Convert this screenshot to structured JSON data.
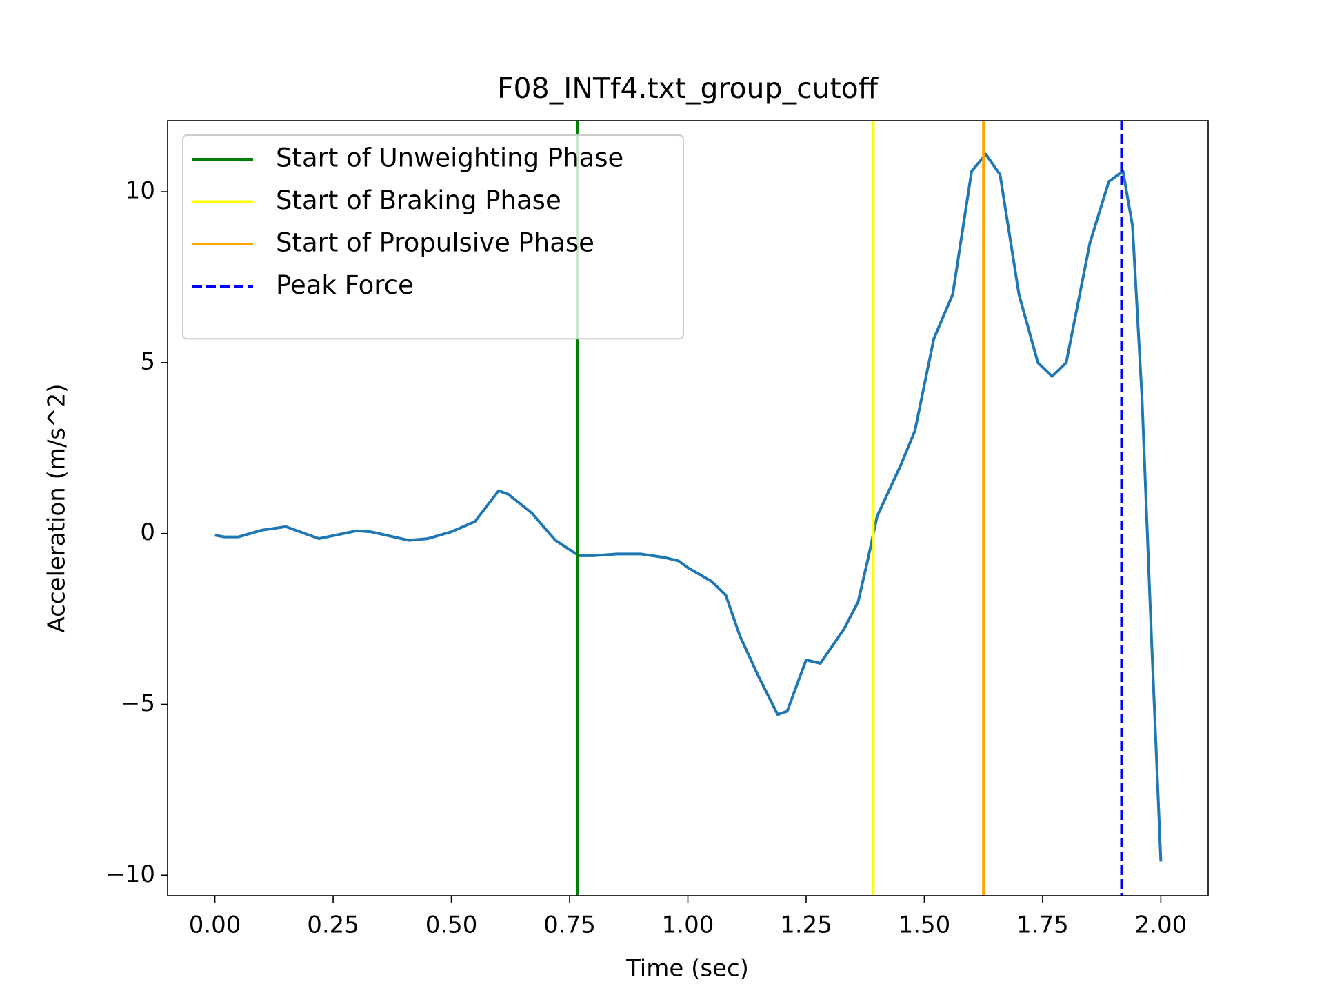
{
  "chart_data": {
    "type": "line",
    "title": "F08_INTf4.txt_group_cutoff",
    "xlabel": "Time (sec)",
    "ylabel": "Acceleration (m/s^2)",
    "series": [
      {
        "color": "#1f77b4",
        "x": [
          0,
          0.02,
          0.05,
          0.1,
          0.15,
          0.22,
          0.3,
          0.33,
          0.41,
          0.45,
          0.5,
          0.55,
          0.6,
          0.62,
          0.67,
          0.72,
          0.77,
          0.8,
          0.85,
          0.9,
          0.95,
          0.98,
          1.0,
          1.05,
          1.08,
          1.11,
          1.15,
          1.19,
          1.21,
          1.25,
          1.28,
          1.33,
          1.36,
          1.38,
          1.4,
          1.45,
          1.48,
          1.52,
          1.56,
          1.6,
          1.63,
          1.66,
          1.7,
          1.74,
          1.77,
          1.8,
          1.85,
          1.89,
          1.92,
          1.94,
          1.96,
          1.98,
          2.0
        ],
        "values": [
          -0.05,
          -0.1,
          -0.1,
          0.1,
          0.2,
          -0.15,
          0.08,
          0.05,
          -0.2,
          -0.15,
          0.05,
          0.35,
          1.25,
          1.15,
          0.6,
          -0.2,
          -0.65,
          -0.65,
          -0.6,
          -0.6,
          -0.7,
          -0.8,
          -1.0,
          -1.4,
          -1.8,
          -3.0,
          -4.2,
          -5.3,
          -5.2,
          -3.7,
          -3.8,
          -2.8,
          -2.0,
          -0.8,
          0.5,
          2.0,
          3.0,
          5.7,
          7.0,
          10.6,
          11.1,
          10.5,
          7.0,
          5.0,
          4.6,
          5.0,
          8.5,
          10.3,
          10.6,
          9.0,
          4.0,
          -3.0,
          -9.6
        ]
      }
    ],
    "vlines": [
      {
        "name": "Start of Unweighting Phase",
        "color": "green",
        "x": 0.766,
        "style": "solid"
      },
      {
        "name": "Start of Braking Phase",
        "color": "yellow",
        "x": 1.392,
        "style": "solid"
      },
      {
        "name": "Start of Propulsive Phase",
        "color": "orange",
        "x": 1.625,
        "style": "solid"
      },
      {
        "name": "Peak Force",
        "color": "blue",
        "x": 1.917,
        "style": "dashed"
      }
    ],
    "xlim": [
      -0.1,
      2.1
    ],
    "ylim": [
      -10.6,
      12.08
    ],
    "xticks": [
      {
        "value": 0,
        "label": "0.00"
      },
      {
        "value": 0.25,
        "label": "0.25"
      },
      {
        "value": 0.5,
        "label": "0.50"
      },
      {
        "value": 0.75,
        "label": "0.75"
      },
      {
        "value": 1,
        "label": "1.00"
      },
      {
        "value": 1.25,
        "label": "1.25"
      },
      {
        "value": 1.5,
        "label": "1.50"
      },
      {
        "value": 1.75,
        "label": "1.75"
      },
      {
        "value": 2,
        "label": "2.00"
      }
    ],
    "yticks": [
      {
        "value": -10,
        "label": "−10"
      },
      {
        "value": -5,
        "label": "−5"
      },
      0,
      5,
      10
    ],
    "legend": "upper left"
  }
}
